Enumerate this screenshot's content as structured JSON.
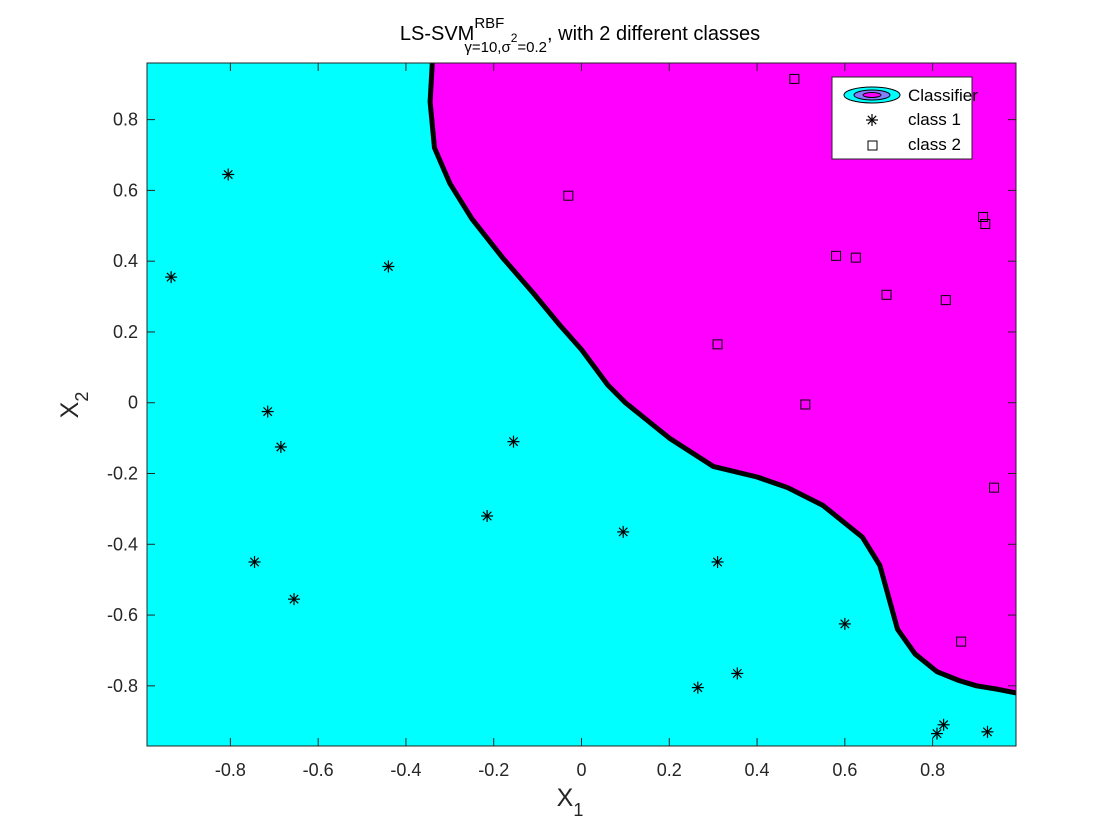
{
  "chart_data": {
    "type": "scatter",
    "title": {
      "main": "LS-SVM",
      "superscript": "RBF",
      "subscript_gamma": "γ=10,σ",
      "subscript_sigma_sup": "2",
      "subscript_value": "=0.2",
      "suffix": ", with 2 different classes"
    },
    "xlabel": {
      "main": "X",
      "sub": "1"
    },
    "ylabel": {
      "main": "X",
      "sub": "2"
    },
    "xlim": [
      -0.99,
      0.99
    ],
    "ylim": [
      -0.97,
      0.96
    ],
    "xticks": [
      -0.8,
      -0.6,
      -0.4,
      -0.2,
      0,
      0.2,
      0.4,
      0.6,
      0.8
    ],
    "xtick_labels": [
      "-0.8",
      "-0.6",
      "-0.4",
      "-0.2",
      "0",
      "0.2",
      "0.4",
      "0.6",
      "0.8"
    ],
    "yticks": [
      -0.8,
      -0.6,
      -0.4,
      -0.2,
      0,
      0.2,
      0.4,
      0.6,
      0.8
    ],
    "ytick_labels": [
      "-0.8",
      "-0.6",
      "-0.4",
      "-0.2",
      "0",
      "0.2",
      "0.4",
      "0.6",
      "0.8"
    ],
    "grid": false,
    "legend_position": "top-right",
    "legend": [
      "Classifier",
      "class 1",
      "class 2"
    ],
    "region_colors": {
      "class1": "#00ffff",
      "class2": "#ff00ff"
    },
    "boundary": {
      "color": "#000000",
      "points": [
        [
          -0.34,
          0.96
        ],
        [
          -0.345,
          0.85
        ],
        [
          -0.335,
          0.72
        ],
        [
          -0.3,
          0.62
        ],
        [
          -0.25,
          0.52
        ],
        [
          -0.18,
          0.41
        ],
        [
          -0.11,
          0.31
        ],
        [
          -0.05,
          0.22
        ],
        [
          0.0,
          0.15
        ],
        [
          0.06,
          0.05
        ],
        [
          0.1,
          0.0
        ],
        [
          0.2,
          -0.1
        ],
        [
          0.3,
          -0.18
        ],
        [
          0.4,
          -0.21
        ],
        [
          0.47,
          -0.24
        ],
        [
          0.55,
          -0.29
        ],
        [
          0.64,
          -0.38
        ],
        [
          0.68,
          -0.46
        ],
        [
          0.7,
          -0.55
        ],
        [
          0.72,
          -0.64
        ],
        [
          0.76,
          -0.71
        ],
        [
          0.81,
          -0.76
        ],
        [
          0.86,
          -0.785
        ],
        [
          0.9,
          -0.8
        ],
        [
          0.95,
          -0.81
        ],
        [
          0.99,
          -0.82
        ]
      ]
    },
    "series": [
      {
        "name": "class 1",
        "marker": "asterisk",
        "x": [
          -0.935,
          -0.805,
          -0.44,
          -0.715,
          -0.685,
          -0.155,
          -0.745,
          -0.655,
          -0.215,
          0.095,
          0.31,
          0.6,
          0.265,
          0.355,
          0.81,
          0.825,
          0.925
        ],
        "y": [
          0.355,
          0.645,
          0.385,
          -0.025,
          -0.125,
          -0.11,
          -0.45,
          -0.555,
          -0.32,
          -0.365,
          -0.45,
          -0.625,
          -0.805,
          -0.765,
          -0.935,
          -0.91,
          -0.93
        ]
      },
      {
        "name": "class 2",
        "marker": "square",
        "x": [
          0.485,
          -0.03,
          0.915,
          0.92,
          0.58,
          0.625,
          0.695,
          0.83,
          0.31,
          0.51,
          0.94,
          0.865
        ],
        "y": [
          0.915,
          0.585,
          0.525,
          0.505,
          0.415,
          0.41,
          0.305,
          0.29,
          0.165,
          -0.005,
          -0.24,
          -0.675
        ]
      }
    ]
  }
}
